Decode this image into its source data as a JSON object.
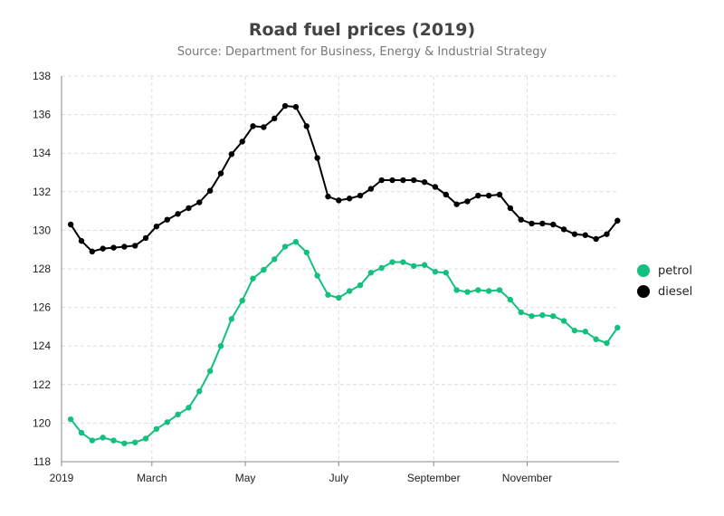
{
  "chart_data": {
    "type": "line",
    "title": "Road fuel prices (2019)",
    "subtitle": "Source: Department for Business, Energy & Industrial Strategy",
    "xlabel": "",
    "ylabel": "",
    "ylim": [
      118,
      138
    ],
    "yticks": [
      118,
      120,
      122,
      124,
      126,
      128,
      130,
      132,
      134,
      136,
      138
    ],
    "xlim": [
      "2019-01-01",
      "2019-12-31"
    ],
    "xticks": [
      {
        "date": "2019-01-01",
        "label": "2019"
      },
      {
        "date": "2019-03-01",
        "label": "March"
      },
      {
        "date": "2019-05-01",
        "label": "May"
      },
      {
        "date": "2019-07-01",
        "label": "July"
      },
      {
        "date": "2019-09-01",
        "label": "September"
      },
      {
        "date": "2019-11-01",
        "label": "November"
      }
    ],
    "grid": true,
    "legend_position": "right",
    "x": [
      "2019-01-07",
      "2019-01-14",
      "2019-01-21",
      "2019-01-28",
      "2019-02-04",
      "2019-02-11",
      "2019-02-18",
      "2019-02-25",
      "2019-03-04",
      "2019-03-11",
      "2019-03-18",
      "2019-03-25",
      "2019-04-01",
      "2019-04-08",
      "2019-04-15",
      "2019-04-22",
      "2019-04-29",
      "2019-05-06",
      "2019-05-13",
      "2019-05-20",
      "2019-05-27",
      "2019-06-03",
      "2019-06-10",
      "2019-06-17",
      "2019-06-24",
      "2019-07-01",
      "2019-07-08",
      "2019-07-15",
      "2019-07-22",
      "2019-07-29",
      "2019-08-05",
      "2019-08-12",
      "2019-08-19",
      "2019-08-26",
      "2019-09-02",
      "2019-09-09",
      "2019-09-16",
      "2019-09-23",
      "2019-09-30",
      "2019-10-07",
      "2019-10-14",
      "2019-10-21",
      "2019-10-28",
      "2019-11-04",
      "2019-11-11",
      "2019-11-18",
      "2019-11-25",
      "2019-12-02",
      "2019-12-09",
      "2019-12-16",
      "2019-12-23",
      "2019-12-30"
    ],
    "series": [
      {
        "name": "petrol",
        "color": "#13c07e",
        "values": [
          120.2,
          119.5,
          119.1,
          119.25,
          119.1,
          118.95,
          119.0,
          119.2,
          119.7,
          120.05,
          120.45,
          120.8,
          121.65,
          122.7,
          124.0,
          125.4,
          126.35,
          127.5,
          127.95,
          128.5,
          129.15,
          129.4,
          128.85,
          127.65,
          126.65,
          126.5,
          126.85,
          127.15,
          127.8,
          128.05,
          128.35,
          128.35,
          128.15,
          128.2,
          127.85,
          127.8,
          126.9,
          126.8,
          126.9,
          126.85,
          126.9,
          126.4,
          125.75,
          125.55,
          125.6,
          125.55,
          125.3,
          124.8,
          124.75,
          124.35,
          124.15,
          124.95
        ]
      },
      {
        "name": "diesel",
        "color": "#000000",
        "values": [
          130.3,
          129.45,
          128.9,
          129.05,
          129.1,
          129.15,
          129.2,
          129.6,
          130.2,
          130.55,
          130.85,
          131.15,
          131.45,
          132.05,
          132.95,
          133.95,
          134.6,
          135.4,
          135.35,
          135.8,
          136.45,
          136.4,
          135.4,
          133.75,
          131.75,
          131.55,
          131.65,
          131.8,
          132.15,
          132.6,
          132.6,
          132.6,
          132.6,
          132.5,
          132.25,
          131.85,
          131.35,
          131.5,
          131.8,
          131.8,
          131.85,
          131.15,
          130.55,
          130.35,
          130.35,
          130.3,
          130.05,
          129.8,
          129.75,
          129.55,
          129.8,
          130.5
        ]
      }
    ]
  }
}
